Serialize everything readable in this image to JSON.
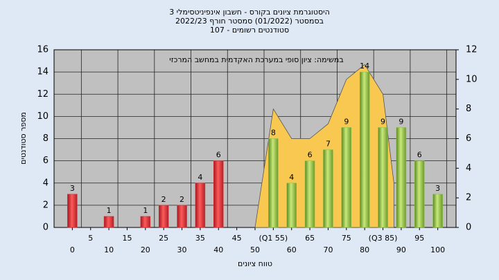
{
  "chart_data": {
    "type": "bar",
    "title": [
      "היסטוגרמת ציונים בקורס - חשבון אינפיניטסימלי 3",
      "בסמסטר (01/2022) סמסטר חורף 2022/23",
      "סטודנטים רשומים - 107"
    ],
    "annotation": "במשימה: ציון סופי במערכת האקדמית במחשב המרכזי",
    "x_label": "טווח ציונים",
    "y_label": "מספר סטודנטים",
    "xlim": [
      -5,
      105
    ],
    "xticks": [
      0,
      5,
      10,
      15,
      20,
      25,
      30,
      35,
      40,
      45,
      50,
      {
        "value": 55,
        "label": "(Q1 55)"
      },
      60,
      65,
      70,
      75,
      80,
      {
        "value": 85,
        "label": "(Q3 85)"
      },
      90,
      95,
      100
    ],
    "ylim": [
      0,
      16
    ],
    "yticks": [
      0,
      2,
      4,
      6,
      8,
      10,
      12,
      14,
      16
    ],
    "y2lim": [
      0,
      12
    ],
    "y2ticks": [
      0,
      2,
      4,
      6,
      8,
      10,
      12
    ],
    "grid": true,
    "series": [
      {
        "type": "area",
        "axis": "y2",
        "color": "#f8c850",
        "x": [
          50,
          55,
          60,
          65,
          70,
          75,
          80,
          85,
          88
        ],
        "values": [
          0,
          8,
          6,
          6,
          7,
          10,
          11,
          9,
          3
        ]
      },
      {
        "type": "bar",
        "color": "#e0343a",
        "x": [
          0,
          10,
          20,
          25,
          30,
          35,
          40
        ],
        "values": [
          3,
          1,
          1,
          2,
          2,
          4,
          6
        ]
      },
      {
        "type": "bar",
        "color": "#8cc04a",
        "x": [
          55,
          60,
          65,
          70,
          75,
          80,
          85,
          90,
          95,
          100
        ],
        "values": [
          8,
          4,
          6,
          7,
          9,
          14,
          9,
          9,
          6,
          3
        ]
      }
    ]
  }
}
